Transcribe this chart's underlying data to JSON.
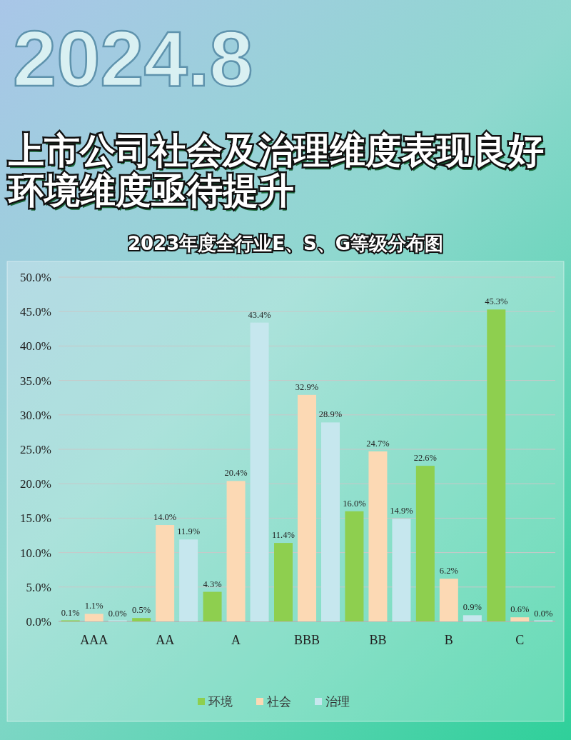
{
  "chart_data": {
    "type": "bar",
    "title": "上市公司社会及治理维度表现良好环境维度亟待提升",
    "subtitle": "2023年度全行业E、S、G等级分布图",
    "annotations": [
      "2024.8"
    ],
    "categories": [
      "AAA",
      "AA",
      "A",
      "BBB",
      "BB",
      "B",
      "C"
    ],
    "series": [
      {
        "name": "环境",
        "color": "#8ecf4f",
        "values": [
          0.1,
          0.5,
          4.3,
          11.4,
          16.0,
          22.6,
          45.3
        ],
        "value_labels": [
          "0.1%",
          "0.5%",
          "4.3%",
          "11.4%",
          "16.0%",
          "22.6%",
          "45.3%"
        ]
      },
      {
        "name": "社会",
        "color": "#fcd9b4",
        "values": [
          1.1,
          14.0,
          20.4,
          32.9,
          24.7,
          6.2,
          0.6
        ],
        "value_labels": [
          "1.1%",
          "14.0%",
          "20.4%",
          "32.9%",
          "24.7%",
          "6.2%",
          "0.6%"
        ]
      },
      {
        "name": "治理",
        "color": "#c6e7ee",
        "values": [
          0.0,
          11.9,
          43.4,
          28.9,
          14.9,
          0.9,
          0.0
        ],
        "value_labels": [
          "0.0%",
          "11.9%",
          "43.4%",
          "28.9%",
          "14.9%",
          "0.9%",
          "0.0%"
        ]
      }
    ],
    "ylim": [
      0,
      50
    ],
    "yticks": [
      {
        "value": 0,
        "label": "0.0%"
      },
      {
        "value": 5,
        "label": "5.0%"
      },
      {
        "value": 10,
        "label": "10.0%"
      },
      {
        "value": 15,
        "label": "15.0%"
      },
      {
        "value": 20,
        "label": "20.0%"
      },
      {
        "value": 25,
        "label": "25.0%"
      },
      {
        "value": 30,
        "label": "30.0%"
      },
      {
        "value": 35,
        "label": "35.0%"
      },
      {
        "value": 40,
        "label": "40.0%"
      },
      {
        "value": 45,
        "label": "45.0%"
      },
      {
        "value": 50,
        "label": "50.0%"
      }
    ],
    "grid": "y",
    "legend": "bottom"
  }
}
